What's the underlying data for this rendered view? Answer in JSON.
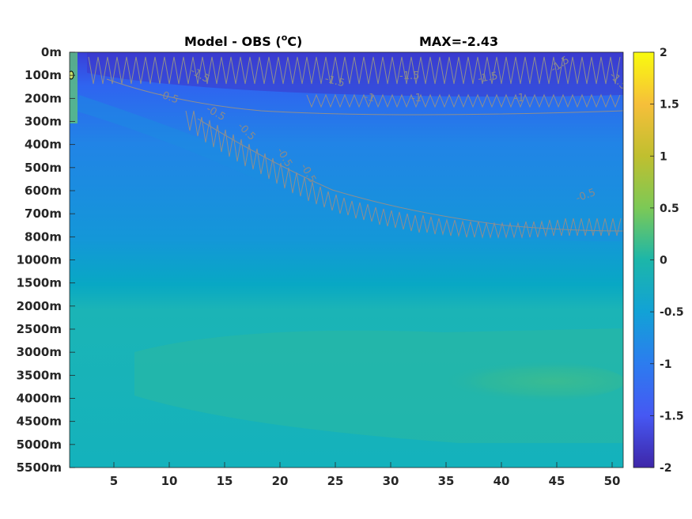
{
  "chart_data": {
    "type": "heatmap",
    "title": "Model - OBS (",
    "title_unit_sup": "o",
    "title_unit_end": "C)",
    "max_label": "MAX=-2.43",
    "x_ticks": [
      "5",
      "10",
      "15",
      "20",
      "25",
      "30",
      "35",
      "40",
      "45",
      "50"
    ],
    "x_tick_values": [
      5,
      10,
      15,
      20,
      25,
      30,
      35,
      40,
      45,
      50
    ],
    "xlim": [
      1,
      51
    ],
    "y_ticks": [
      "0m",
      "100m",
      "200m",
      "300m",
      "400m",
      "500m",
      "600m",
      "700m",
      "800m",
      "1000m",
      "1500m",
      "2000m",
      "2500m",
      "3000m",
      "3500m",
      "4000m",
      "4500m",
      "5000m",
      "5500m"
    ],
    "colorbar": {
      "ticks": [
        "2",
        "1.5",
        "1",
        "0.5",
        "0",
        "-0.5",
        "-1",
        "-1.5",
        "-2"
      ],
      "tick_values": [
        2,
        1.5,
        1,
        0.5,
        0,
        -0.5,
        -1,
        -1.5,
        -2
      ],
      "clim": [
        -2,
        2
      ],
      "colormap": "parula"
    },
    "contour_labels": [
      "-1.5",
      "-1.5",
      "-1.5",
      "-1.5",
      "-1.5",
      "-1.5",
      "-1",
      "-1",
      "-1",
      "-0.5",
      "-0.5",
      "-0.5",
      "-0.5",
      "-0.5",
      "-0.5"
    ],
    "max_value": -2.43
  }
}
